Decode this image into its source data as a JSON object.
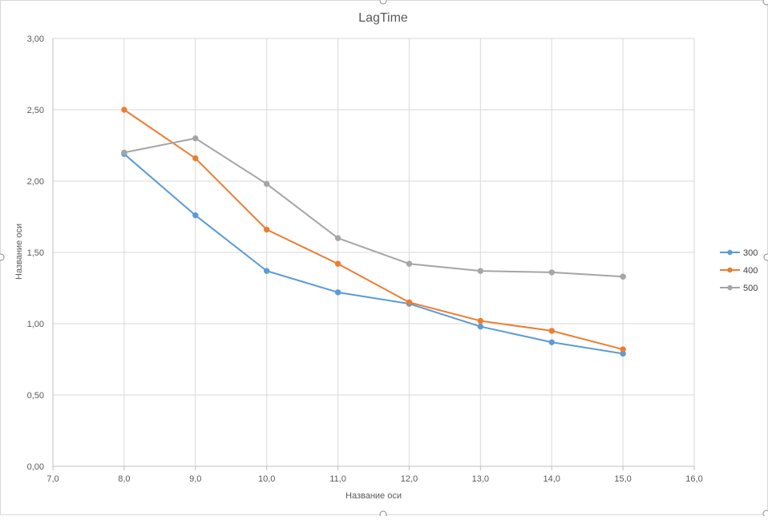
{
  "chart_data": {
    "type": "line",
    "title": "LagTime",
    "xlabel": "Название оси",
    "ylabel": "Название оси",
    "xlim": [
      7,
      16
    ],
    "ylim": [
      0,
      3
    ],
    "xticks": [
      "7,0",
      "8,0",
      "9,0",
      "10,0",
      "11,0",
      "12,0",
      "13,0",
      "14,0",
      "15,0",
      "16,0"
    ],
    "yticks": [
      "0,00",
      "0,50",
      "1,00",
      "1,50",
      "2,00",
      "2,50",
      "3,00"
    ],
    "grid": true,
    "legend_position": "right",
    "x": [
      8,
      9,
      10,
      11,
      12,
      13,
      14,
      15
    ],
    "series": [
      {
        "name": "300",
        "color": "#5B9BD5",
        "values": [
          2.19,
          1.76,
          1.37,
          1.22,
          1.14,
          0.98,
          0.87,
          0.79
        ]
      },
      {
        "name": "400",
        "color": "#ED7D31",
        "values": [
          2.5,
          2.16,
          1.66,
          1.42,
          1.15,
          1.02,
          0.95,
          0.82
        ]
      },
      {
        "name": "500",
        "color": "#A5A5A5",
        "values": [
          2.2,
          2.3,
          1.98,
          1.6,
          1.42,
          1.37,
          1.36,
          1.33
        ]
      }
    ]
  }
}
